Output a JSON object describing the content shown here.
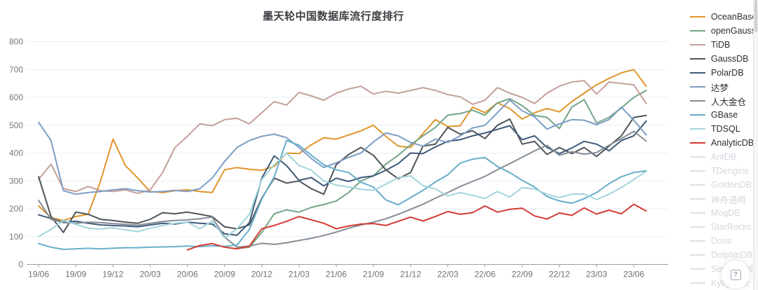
{
  "page": {
    "title": "墨天轮中国数据库流行度排行"
  },
  "chart_data": {
    "type": "line",
    "title": "墨天轮中国数据库流行度排行",
    "x_start_month": "19/06",
    "x_interval": "monthly",
    "x_tick_labels": [
      "19/06",
      "19/09",
      "19/12",
      "20/03",
      "20/06",
      "20/09",
      "20/12",
      "21/03",
      "21/06",
      "21/09",
      "21/12",
      "22/03",
      "22/06",
      "22/09",
      "22/12",
      "23/03",
      "23/06"
    ],
    "ylim": [
      0,
      800
    ],
    "y_ticks": [
      0,
      100,
      200,
      300,
      400,
      500,
      600,
      700,
      800
    ],
    "grid": true,
    "legend_position": "right",
    "series": [
      {
        "name": "OceanBase",
        "color": "#E0952B",
        "values": [
          210,
          168,
          158,
          172,
          180,
          300,
          450,
          355,
          310,
          262,
          258,
          265,
          268,
          262,
          258,
          340,
          348,
          342,
          338,
          352,
          400,
          398,
          430,
          455,
          450,
          465,
          480,
          500,
          460,
          425,
          420,
          470,
          520,
          495,
          498,
          565,
          545,
          580,
          560,
          522,
          545,
          560,
          548,
          585,
          615,
          645,
          668,
          688,
          700,
          640
        ]
      },
      {
        "name": "openGauss",
        "color": "#74A585",
        "values": [
          null,
          null,
          null,
          null,
          null,
          null,
          null,
          null,
          null,
          null,
          null,
          null,
          null,
          null,
          null,
          null,
          57,
          62,
          115,
          182,
          196,
          188,
          205,
          215,
          228,
          258,
          300,
          318,
          360,
          392,
          430,
          462,
          492,
          536,
          542,
          554,
          536,
          580,
          595,
          570,
          535,
          528,
          488,
          565,
          592,
          508,
          528,
          562,
          600,
          625
        ]
      },
      {
        "name": "TiDB",
        "color": "#C4A09B",
        "values": [
          305,
          360,
          272,
          262,
          280,
          265,
          262,
          268,
          255,
          268,
          330,
          420,
          460,
          505,
          498,
          520,
          525,
          505,
          545,
          585,
          572,
          618,
          605,
          590,
          615,
          630,
          640,
          612,
          622,
          615,
          625,
          635,
          625,
          610,
          602,
          575,
          590,
          635,
          615,
          600,
          578,
          615,
          640,
          655,
          660,
          612,
          655,
          650,
          645,
          578
        ]
      },
      {
        "name": "GaussDB",
        "color": "#50555A",
        "values": [
          315,
          172,
          115,
          188,
          180,
          162,
          158,
          152,
          148,
          162,
          186,
          182,
          188,
          180,
          172,
          135,
          128,
          142,
          238,
          310,
          292,
          300,
          272,
          252,
          358,
          395,
          420,
          392,
          340,
          308,
          330,
          425,
          432,
          492,
          468,
          480,
          452,
          500,
          522,
          432,
          442,
          395,
          420,
          398,
          420,
          388,
          425,
          462,
          528,
          535
        ]
      },
      {
        "name": "PolarDB",
        "color": "#3E5A78",
        "values": [
          178,
          165,
          152,
          155,
          148,
          142,
          140,
          138,
          135,
          142,
          148,
          145,
          152,
          148,
          145,
          110,
          105,
          150,
          310,
          390,
          355,
          302,
          312,
          282,
          310,
          298,
          312,
          318,
          338,
          362,
          400,
          398,
          422,
          442,
          448,
          462,
          472,
          485,
          498,
          448,
          462,
          420,
          398,
          418,
          442,
          432,
          408,
          445,
          462,
          515
        ]
      },
      {
        "name": "达梦",
        "color": "#7E9DC5",
        "values": [
          510,
          445,
          265,
          252,
          258,
          262,
          268,
          272,
          265,
          260,
          262,
          266,
          262,
          272,
          310,
          370,
          420,
          445,
          460,
          468,
          455,
          420,
          380,
          348,
          365,
          385,
          400,
          440,
          472,
          462,
          438,
          425,
          450,
          438,
          462,
          490,
          500,
          545,
          590,
          552,
          530,
          486,
          505,
          520,
          518,
          502,
          520,
          565,
          518,
          465
        ]
      },
      {
        "name": "人大金仓",
        "color": "#858D96",
        "values": [
          230,
          162,
          150,
          148,
          152,
          150,
          147,
          144,
          141,
          148,
          154,
          158,
          160,
          164,
          170,
          98,
          62,
          66,
          76,
          72,
          78,
          86,
          94,
          104,
          116,
          130,
          142,
          152,
          164,
          180,
          198,
          216,
          238,
          258,
          280,
          298,
          316,
          340,
          362,
          385,
          408,
          428,
          392,
          405,
          396,
          402,
          428,
          452,
          478,
          443
        ]
      },
      {
        "name": "GBase",
        "color": "#67AECB",
        "values": [
          75,
          62,
          54,
          56,
          58,
          56,
          58,
          60,
          60,
          62,
          63,
          64,
          66,
          64,
          67,
          65,
          70,
          125,
          235,
          315,
          445,
          428,
          392,
          358,
          340,
          330,
          295,
          278,
          232,
          214,
          240,
          266,
          296,
          322,
          364,
          378,
          384,
          352,
          330,
          302,
          278,
          244,
          228,
          220,
          236,
          258,
          290,
          315,
          330,
          336
        ]
      },
      {
        "name": "TDSQL",
        "color": "#A2D5DC",
        "values": [
          100,
          126,
          158,
          144,
          130,
          127,
          132,
          124,
          118,
          130,
          140,
          148,
          152,
          128,
          156,
          95,
          128,
          180,
          305,
          358,
          400,
          356,
          338,
          300,
          285,
          278,
          270,
          266,
          288,
          312,
          318,
          283,
          271,
          246,
          258,
          248,
          237,
          262,
          242,
          276,
          271,
          252,
          240,
          252,
          253,
          233,
          252,
          276,
          305,
          334
        ]
      },
      {
        "name": "AnalyticDB",
        "color": "#D43C33",
        "values": [
          null,
          null,
          null,
          null,
          null,
          null,
          null,
          null,
          null,
          null,
          null,
          null,
          52,
          68,
          75,
          62,
          56,
          66,
          128,
          140,
          155,
          172,
          160,
          148,
          128,
          138,
          145,
          147,
          140,
          155,
          170,
          156,
          172,
          190,
          180,
          186,
          210,
          188,
          198,
          202,
          174,
          163,
          185,
          176,
          203,
          181,
          195,
          182,
          216,
          192
        ]
      }
    ],
    "hidden_series": [
      "AntDB",
      "TDengine",
      "GoldenDB",
      "神舟通用",
      "MogDB",
      "StarRocks",
      "Doris",
      "DolphinDB",
      "SequoiaDB",
      "Kyligence"
    ]
  },
  "legend": {
    "items": [
      {
        "label": "OceanBase",
        "color": "#E0952B",
        "active": true
      },
      {
        "label": "openGauss",
        "color": "#74A585",
        "active": true
      },
      {
        "label": "TiDB",
        "color": "#C4A09B",
        "active": true
      },
      {
        "label": "GaussDB",
        "color": "#50555A",
        "active": true
      },
      {
        "label": "PolarDB",
        "color": "#3E5A78",
        "active": true
      },
      {
        "label": "达梦",
        "color": "#7E9DC5",
        "active": true
      },
      {
        "label": "人大金仓",
        "color": "#858D96",
        "active": true
      },
      {
        "label": "GBase",
        "color": "#67AECB",
        "active": true
      },
      {
        "label": "TDSQL",
        "color": "#A2D5DC",
        "active": true
      },
      {
        "label": "AnalyticDB",
        "color": "#D43C33",
        "active": true
      },
      {
        "label": "AntDB",
        "color": "#DCDFE4",
        "active": false
      },
      {
        "label": "TDengine",
        "color": "#DCDFE4",
        "active": false
      },
      {
        "label": "GoldenDB",
        "color": "#DCDFE4",
        "active": false
      },
      {
        "label": "神舟通用",
        "color": "#DCDFE4",
        "active": false
      },
      {
        "label": "MogDB",
        "color": "#DCDFE4",
        "active": false
      },
      {
        "label": "StarRocks",
        "color": "#DCDFE4",
        "active": false
      },
      {
        "label": "Doris",
        "color": "#DCDFE4",
        "active": false
      },
      {
        "label": "DolphinDB",
        "color": "#DCDFE4",
        "active": false
      },
      {
        "label": "SequoiaDB",
        "color": "#DCDFE4",
        "active": false
      },
      {
        "label": "Kyligence",
        "color": "#DCDFE4",
        "active": false
      }
    ]
  },
  "help_button": {
    "glyph": "?"
  },
  "axis_colors": {
    "grid": "#E9EFF5",
    "axis": "#9AA0A6",
    "tick_text": "#6C7076",
    "y_text": "#75797F"
  }
}
